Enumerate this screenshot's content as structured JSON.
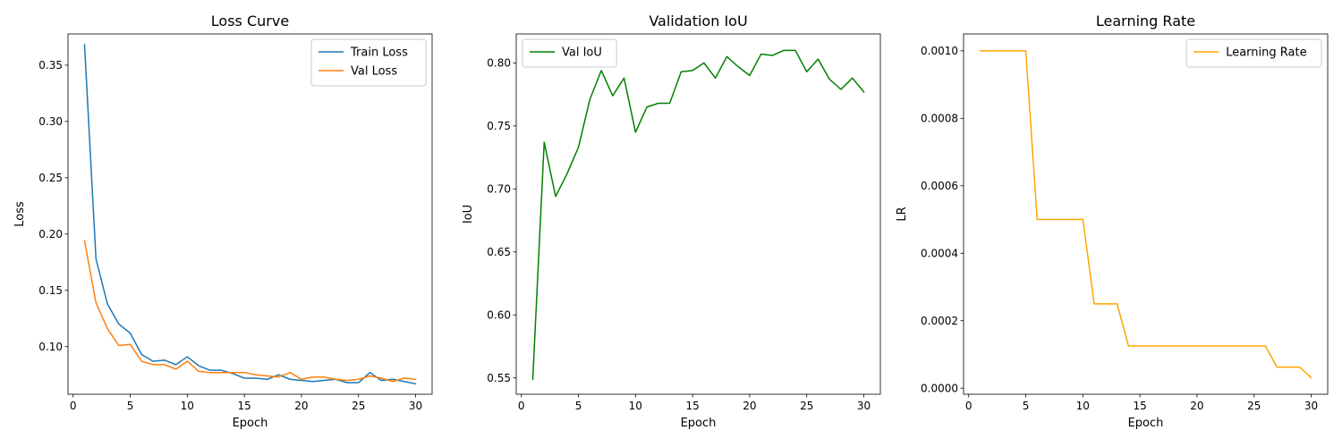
{
  "chart_data": [
    {
      "type": "line",
      "title": "Loss Curve",
      "xlabel": "Epoch",
      "ylabel": "Loss",
      "xlim": [
        -0.45,
        31.45
      ],
      "ylim": [
        0.0577,
        0.3777
      ],
      "xticks": [
        0,
        5,
        10,
        15,
        20,
        25,
        30
      ],
      "yticks": [
        0.1,
        0.15,
        0.2,
        0.25,
        0.3,
        0.35
      ],
      "ytick_labels": [
        "0.10",
        "0.15",
        "0.20",
        "0.25",
        "0.30",
        "0.35"
      ],
      "legend": "top-right",
      "x": [
        1,
        2,
        3,
        4,
        5,
        6,
        7,
        8,
        9,
        10,
        11,
        12,
        13,
        14,
        15,
        16,
        17,
        18,
        19,
        20,
        21,
        22,
        23,
        24,
        25,
        26,
        27,
        28,
        29,
        30
      ],
      "series": [
        {
          "name": "Train Loss",
          "color": "#1f77b4",
          "values": [
            0.368,
            0.178,
            0.138,
            0.12,
            0.112,
            0.093,
            0.087,
            0.088,
            0.084,
            0.091,
            0.083,
            0.079,
            0.079,
            0.076,
            0.072,
            0.072,
            0.071,
            0.075,
            0.071,
            0.07,
            0.069,
            0.07,
            0.071,
            0.068,
            0.068,
            0.077,
            0.07,
            0.071,
            0.069,
            0.067
          ]
        },
        {
          "name": "Val Loss",
          "color": "#ff7f0e",
          "values": [
            0.194,
            0.139,
            0.116,
            0.101,
            0.102,
            0.087,
            0.084,
            0.084,
            0.08,
            0.087,
            0.078,
            0.077,
            0.077,
            0.077,
            0.077,
            0.075,
            0.074,
            0.073,
            0.077,
            0.071,
            0.073,
            0.073,
            0.071,
            0.07,
            0.071,
            0.074,
            0.072,
            0.069,
            0.072,
            0.071
          ]
        }
      ]
    },
    {
      "type": "line",
      "title": "Validation IoU",
      "xlabel": "Epoch",
      "ylabel": "IoU",
      "xlim": [
        -0.45,
        31.45
      ],
      "ylim": [
        0.537,
        0.823
      ],
      "xticks": [
        0,
        5,
        10,
        15,
        20,
        25,
        30
      ],
      "yticks": [
        0.55,
        0.6,
        0.65,
        0.7,
        0.75,
        0.8
      ],
      "ytick_labels": [
        "0.55",
        "0.60",
        "0.65",
        "0.70",
        "0.75",
        "0.80"
      ],
      "legend": "top-left",
      "x": [
        1,
        2,
        3,
        4,
        5,
        6,
        7,
        8,
        9,
        10,
        11,
        12,
        13,
        14,
        15,
        16,
        17,
        18,
        19,
        20,
        21,
        22,
        23,
        24,
        25,
        26,
        27,
        28,
        29,
        30
      ],
      "series": [
        {
          "name": "Val IoU",
          "color": "#008000",
          "values": [
            0.549,
            0.737,
            0.694,
            0.712,
            0.733,
            0.771,
            0.794,
            0.774,
            0.788,
            0.745,
            0.765,
            0.768,
            0.768,
            0.793,
            0.794,
            0.8,
            0.788,
            0.805,
            0.797,
            0.79,
            0.807,
            0.806,
            0.81,
            0.81,
            0.793,
            0.803,
            0.787,
            0.779,
            0.788,
            0.777
          ]
        }
      ]
    },
    {
      "type": "line",
      "title": "Learning Rate",
      "xlabel": "Epoch",
      "ylabel": "LR",
      "xlim": [
        -0.45,
        31.45
      ],
      "ylim": [
        -1.8e-05,
        0.00105
      ],
      "xticks": [
        0,
        5,
        10,
        15,
        20,
        25,
        30
      ],
      "yticks": [
        0,
        0.0002,
        0.0004,
        0.0006,
        0.0008,
        0.001
      ],
      "ytick_labels": [
        "0.0000",
        "0.0002",
        "0.0004",
        "0.0006",
        "0.0008",
        "0.0010"
      ],
      "legend": "top-right",
      "x": [
        1,
        2,
        3,
        4,
        5,
        6,
        7,
        8,
        9,
        10,
        11,
        12,
        13,
        14,
        15,
        16,
        17,
        18,
        19,
        20,
        21,
        22,
        23,
        24,
        25,
        26,
        27,
        28,
        29,
        30
      ],
      "series": [
        {
          "name": "Learning Rate",
          "color": "#ffa500",
          "values": [
            0.001,
            0.001,
            0.001,
            0.001,
            0.001,
            0.0005,
            0.0005,
            0.0005,
            0.0005,
            0.0005,
            0.00025,
            0.00025,
            0.00025,
            0.000125,
            0.000125,
            0.000125,
            0.000125,
            0.000125,
            0.000125,
            0.000125,
            0.000125,
            0.000125,
            0.000125,
            0.000125,
            0.000125,
            0.000125,
            6.25e-05,
            6.25e-05,
            6.25e-05,
            3.125e-05
          ]
        }
      ]
    }
  ]
}
